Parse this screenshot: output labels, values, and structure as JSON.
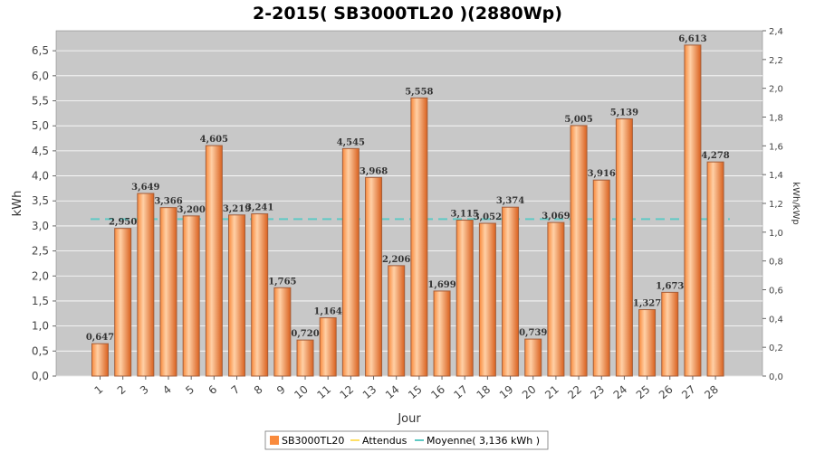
{
  "chart_data": {
    "type": "bar",
    "title": "2-2015( SB3000TL20 )(2880Wp)",
    "xlabel": "Jour",
    "ylabel": "kWh",
    "y2label": "kWh/kWp",
    "ylim": [
      0,
      6.9
    ],
    "y2lim": [
      0,
      2.4
    ],
    "yticks": [
      "0,0",
      "0,5",
      "1,0",
      "1,5",
      "2,0",
      "2,5",
      "3,0",
      "3,5",
      "4,0",
      "4,5",
      "5,0",
      "5,5",
      "6,0",
      "6,5"
    ],
    "y2ticks": [
      "0,0",
      "0,2",
      "0,4",
      "0,6",
      "0,8",
      "1,0",
      "1,2",
      "1,4",
      "1,6",
      "1,8",
      "2,0",
      "2,2",
      "2,4"
    ],
    "categories": [
      "1",
      "2",
      "3",
      "4",
      "5",
      "6",
      "7",
      "8",
      "9",
      "10",
      "11",
      "12",
      "13",
      "14",
      "15",
      "16",
      "17",
      "18",
      "19",
      "20",
      "21",
      "22",
      "23",
      "24",
      "25",
      "26",
      "27",
      "28"
    ],
    "values": [
      0.647,
      2.95,
      3.649,
      3.366,
      3.2,
      4.605,
      3.219,
      3.241,
      1.765,
      0.72,
      1.164,
      4.545,
      3.968,
      2.206,
      5.558,
      1.699,
      3.115,
      3.052,
      3.374,
      0.739,
      3.069,
      5.005,
      3.916,
      5.139,
      1.327,
      1.673,
      6.613,
      4.278
    ],
    "value_labels": [
      "0,647",
      "2,950",
      "3,649",
      "3,366",
      "3,200",
      "4,605",
      "3,219",
      "3,241",
      "1,765",
      "0,720",
      "1,164",
      "4,545",
      "3,968",
      "2,206",
      "5,558",
      "1,699",
      "3,115",
      "3,052",
      "3,374",
      "0,739",
      "3,069",
      "5,005",
      "3,916",
      "5,139",
      "1,327",
      "1,673",
      "6,613",
      "4,278"
    ],
    "average": 3.136,
    "legend": {
      "position": "bottom",
      "items": [
        {
          "name": "SB3000TL20",
          "color": "#f98a3c"
        },
        {
          "name": "Attendus",
          "color": "#ffe066"
        },
        {
          "name": "Moyenne( 3,136 kWh )",
          "color": "#5fc9c4"
        }
      ]
    },
    "colors": {
      "plot_bg": "#c8c8c8",
      "grid": "#ffffff",
      "bar_light": "#ffd0a6",
      "bar_mid": "#f98a3c",
      "bar_dark": "#d9611f",
      "bar_stroke": "#a55e3a",
      "average_line": "#5fc9c4"
    },
    "grid": true
  }
}
